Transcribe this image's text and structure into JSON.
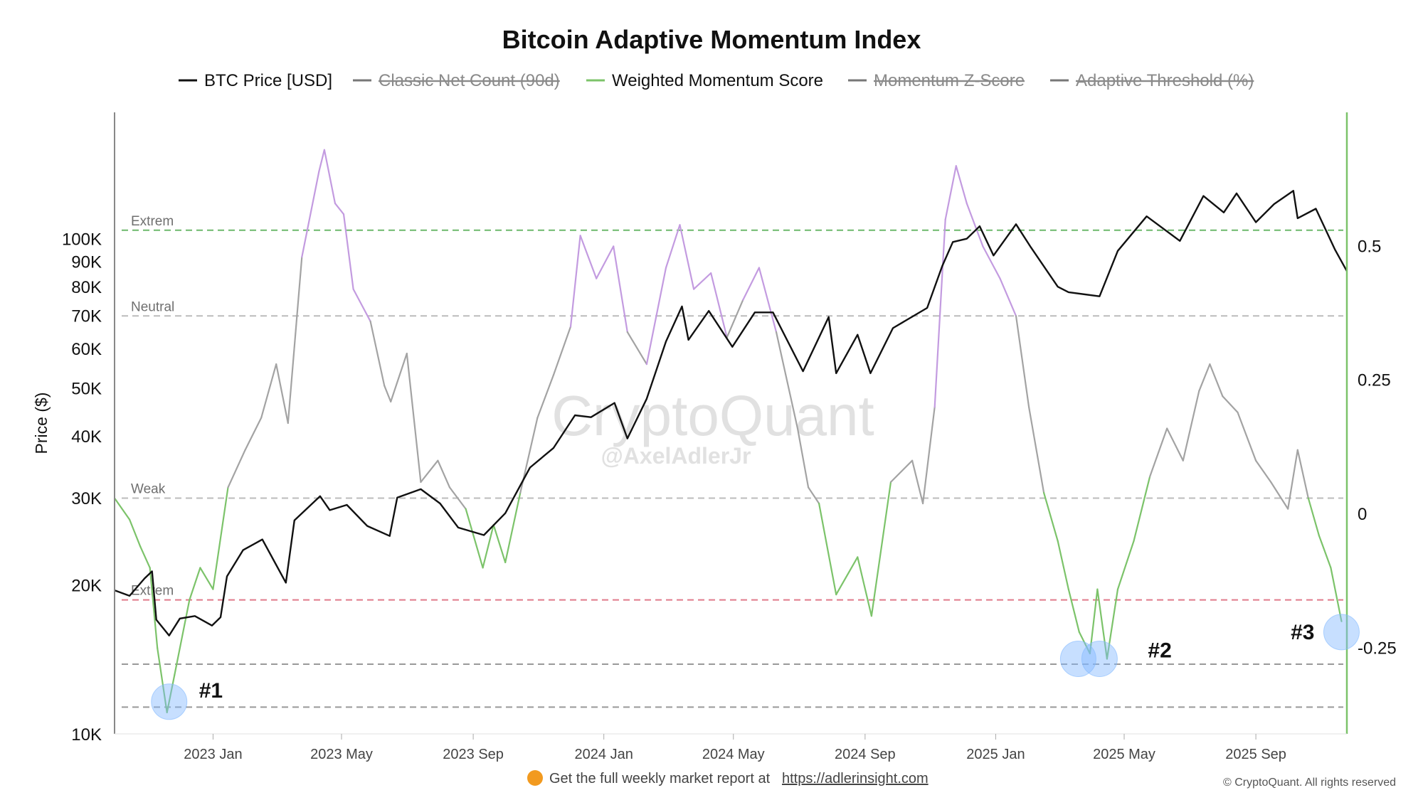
{
  "chart_data": {
    "type": "line",
    "title": "Bitcoin Adaptive Momentum Index",
    "ylabel": "Price ($)",
    "y_scale": "log",
    "ylim": [
      10000,
      180000
    ],
    "y2lim": [
      -0.41,
      0.75
    ],
    "x_range": [
      "2022-10-01",
      "2025-11-25"
    ],
    "x_ticks": [
      {
        "date": "2023-01-01",
        "label": "2023 Jan"
      },
      {
        "date": "2023-05-01",
        "label": "2023 May"
      },
      {
        "date": "2023-09-01",
        "label": "2023 Sep"
      },
      {
        "date": "2024-01-01",
        "label": "2024 Jan"
      },
      {
        "date": "2024-05-01",
        "label": "2024 May"
      },
      {
        "date": "2024-09-01",
        "label": "2024 Sep"
      },
      {
        "date": "2025-01-01",
        "label": "2025 Jan"
      },
      {
        "date": "2025-05-01",
        "label": "2025 May"
      },
      {
        "date": "2025-09-01",
        "label": "2025 Sep"
      }
    ],
    "y_ticks_left": [
      {
        "value": 10000,
        "label": "10K"
      },
      {
        "value": 20000,
        "label": "20K"
      },
      {
        "value": 30000,
        "label": "30K"
      },
      {
        "value": 40000,
        "label": "40K"
      },
      {
        "value": 50000,
        "label": "50K"
      },
      {
        "value": 60000,
        "label": "60K"
      },
      {
        "value": 70000,
        "label": "70K"
      },
      {
        "value": 80000,
        "label": "80K"
      },
      {
        "value": 90000,
        "label": "90K"
      },
      {
        "value": 100000,
        "label": "100K"
      }
    ],
    "y_ticks_right": [
      {
        "value": -0.25,
        "label": "-0.25"
      },
      {
        "value": 0,
        "label": "0"
      },
      {
        "value": 0.25,
        "label": "0.25"
      },
      {
        "value": 0.5,
        "label": "0.5"
      }
    ],
    "legend": [
      {
        "label": "BTC Price [USD]",
        "color": "#111111",
        "hidden": false
      },
      {
        "label": "Classic Net Count (90d)",
        "color": "#777777",
        "hidden": true
      },
      {
        "label": "Weighted Momentum Score",
        "color": "#7cc36a",
        "hidden": false
      },
      {
        "label": "Momentum Z-Score",
        "color": "#777777",
        "hidden": true
      },
      {
        "label": "Adaptive Threshold (%)",
        "color": "#777777",
        "hidden": true
      }
    ],
    "reference_lines": [
      {
        "label": "Extrem",
        "value": 0.53,
        "color": "#6db86b"
      },
      {
        "label": "Neutral",
        "value": 0.37,
        "color": "#bbbbbb"
      },
      {
        "label": "Weak",
        "value": 0.03,
        "color": "#bbbbbb"
      },
      {
        "label": "Extrem",
        "value": -0.16,
        "color": "#e07a8a"
      },
      {
        "label": "",
        "value": -0.28,
        "color": "#999999"
      },
      {
        "label": "",
        "value": -0.36,
        "color": "#999999"
      }
    ],
    "annotations": [
      {
        "label": "#1",
        "date": "2022-11-21",
        "value": -0.35
      },
      {
        "label": "#2",
        "date": "2025-04-08",
        "value": -0.27
      },
      {
        "label": "#3",
        "date": "2025-11-20",
        "value": -0.22
      }
    ],
    "series": [
      {
        "name": "BTC Price [USD]",
        "axis": "left",
        "color": "#111111",
        "points": [
          [
            "2022-10-01",
            19500
          ],
          [
            "2022-10-15",
            19000
          ],
          [
            "2022-10-29",
            20600
          ],
          [
            "2022-11-05",
            21300
          ],
          [
            "2022-11-09",
            17000
          ],
          [
            "2022-11-21",
            15800
          ],
          [
            "2022-12-01",
            17100
          ],
          [
            "2022-12-15",
            17300
          ],
          [
            "2022-12-31",
            16550
          ],
          [
            "2023-01-08",
            17200
          ],
          [
            "2023-01-14",
            20800
          ],
          [
            "2023-01-29",
            23500
          ],
          [
            "2023-02-16",
            24700
          ],
          [
            "2023-03-10",
            20200
          ],
          [
            "2023-03-18",
            27000
          ],
          [
            "2023-04-11",
            30200
          ],
          [
            "2023-04-20",
            28300
          ],
          [
            "2023-05-06",
            29000
          ],
          [
            "2023-05-25",
            26300
          ],
          [
            "2023-06-15",
            25100
          ],
          [
            "2023-06-22",
            30000
          ],
          [
            "2023-07-14",
            31200
          ],
          [
            "2023-08-01",
            29200
          ],
          [
            "2023-08-18",
            26100
          ],
          [
            "2023-09-11",
            25200
          ],
          [
            "2023-10-01",
            27900
          ],
          [
            "2023-10-24",
            34500
          ],
          [
            "2023-11-15",
            37800
          ],
          [
            "2023-12-05",
            44000
          ],
          [
            "2023-12-20",
            43600
          ],
          [
            "2024-01-11",
            46600
          ],
          [
            "2024-01-23",
            39500
          ],
          [
            "2024-02-10",
            47500
          ],
          [
            "2024-02-28",
            62000
          ],
          [
            "2024-03-14",
            73000
          ],
          [
            "2024-03-20",
            62500
          ],
          [
            "2024-04-08",
            71500
          ],
          [
            "2024-04-30",
            60500
          ],
          [
            "2024-05-21",
            71000
          ],
          [
            "2024-06-07",
            71000
          ],
          [
            "2024-07-05",
            54000
          ],
          [
            "2024-07-29",
            69500
          ],
          [
            "2024-08-05",
            53500
          ],
          [
            "2024-08-25",
            64000
          ],
          [
            "2024-09-06",
            53500
          ],
          [
            "2024-09-27",
            66000
          ],
          [
            "2024-10-29",
            72500
          ],
          [
            "2024-11-12",
            88000
          ],
          [
            "2024-11-22",
            98500
          ],
          [
            "2024-12-05",
            100000
          ],
          [
            "2024-12-17",
            106000
          ],
          [
            "2024-12-30",
            92500
          ],
          [
            "2025-01-20",
            107000
          ],
          [
            "2025-02-03",
            96000
          ],
          [
            "2025-02-28",
            80000
          ],
          [
            "2025-03-10",
            78000
          ],
          [
            "2025-04-08",
            76500
          ],
          [
            "2025-04-25",
            94500
          ],
          [
            "2025-05-22",
            111000
          ],
          [
            "2025-06-22",
            99000
          ],
          [
            "2025-07-14",
            122000
          ],
          [
            "2025-08-02",
            113000
          ],
          [
            "2025-08-14",
            123500
          ],
          [
            "2025-09-01",
            108000
          ],
          [
            "2025-09-18",
            117500
          ],
          [
            "2025-10-06",
            125000
          ],
          [
            "2025-10-10",
            110000
          ],
          [
            "2025-10-27",
            115000
          ],
          [
            "2025-11-14",
            95000
          ],
          [
            "2025-11-25",
            86000
          ]
        ]
      },
      {
        "name": "Weighted Momentum Score",
        "axis": "right",
        "color": "#7cc36a",
        "points": [
          [
            "2022-10-01",
            0.03
          ],
          [
            "2022-10-15",
            -0.01
          ],
          [
            "2022-10-25",
            -0.06
          ],
          [
            "2022-11-03",
            -0.1
          ],
          [
            "2022-11-10",
            -0.25
          ],
          [
            "2022-11-19",
            -0.37
          ],
          [
            "2022-11-26",
            -0.3
          ],
          [
            "2022-12-10",
            -0.16
          ],
          [
            "2022-12-20",
            -0.1
          ],
          [
            "2023-01-01",
            -0.14
          ],
          [
            "2023-01-15",
            0.05
          ],
          [
            "2023-01-31",
            0.12
          ],
          [
            "2023-02-15",
            0.18
          ],
          [
            "2023-03-01",
            0.28
          ],
          [
            "2023-03-12",
            0.17
          ],
          [
            "2023-03-25",
            0.48
          ],
          [
            "2023-04-10",
            0.64
          ],
          [
            "2023-04-15",
            0.68
          ],
          [
            "2023-04-25",
            0.58
          ],
          [
            "2023-05-03",
            0.56
          ],
          [
            "2023-05-12",
            0.42
          ],
          [
            "2023-05-28",
            0.36
          ],
          [
            "2023-06-10",
            0.24
          ],
          [
            "2023-06-16",
            0.21
          ],
          [
            "2023-07-01",
            0.3
          ],
          [
            "2023-07-14",
            0.06
          ],
          [
            "2023-07-30",
            0.1
          ],
          [
            "2023-08-10",
            0.05
          ],
          [
            "2023-08-25",
            0.01
          ],
          [
            "2023-09-10",
            -0.1
          ],
          [
            "2023-09-20",
            -0.02
          ],
          [
            "2023-10-01",
            -0.09
          ],
          [
            "2023-10-15",
            0.04
          ],
          [
            "2023-10-31",
            0.18
          ],
          [
            "2023-11-15",
            0.26
          ],
          [
            "2023-12-01",
            0.35
          ],
          [
            "2023-12-10",
            0.52
          ],
          [
            "2023-12-25",
            0.44
          ],
          [
            "2024-01-10",
            0.5
          ],
          [
            "2024-01-23",
            0.34
          ],
          [
            "2024-02-10",
            0.28
          ],
          [
            "2024-02-28",
            0.46
          ],
          [
            "2024-03-12",
            0.54
          ],
          [
            "2024-03-25",
            0.42
          ],
          [
            "2024-04-10",
            0.45
          ],
          [
            "2024-04-25",
            0.33
          ],
          [
            "2024-05-10",
            0.4
          ],
          [
            "2024-05-25",
            0.46
          ],
          [
            "2024-06-10",
            0.34
          ],
          [
            "2024-06-30",
            0.16
          ],
          [
            "2024-07-10",
            0.05
          ],
          [
            "2024-07-20",
            0.02
          ],
          [
            "2024-08-05",
            -0.15
          ],
          [
            "2024-08-25",
            -0.08
          ],
          [
            "2024-09-07",
            -0.19
          ],
          [
            "2024-09-25",
            0.06
          ],
          [
            "2024-10-15",
            0.1
          ],
          [
            "2024-10-25",
            0.02
          ],
          [
            "2024-11-05",
            0.2
          ],
          [
            "2024-11-15",
            0.55
          ],
          [
            "2024-11-25",
            0.65
          ],
          [
            "2024-12-05",
            0.58
          ],
          [
            "2024-12-20",
            0.5
          ],
          [
            "2025-01-05",
            0.44
          ],
          [
            "2025-01-20",
            0.37
          ],
          [
            "2025-02-01",
            0.2
          ],
          [
            "2025-02-15",
            0.04
          ],
          [
            "2025-02-28",
            -0.05
          ],
          [
            "2025-03-10",
            -0.14
          ],
          [
            "2025-03-20",
            -0.22
          ],
          [
            "2025-03-30",
            -0.26
          ],
          [
            "2025-04-06",
            -0.14
          ],
          [
            "2025-04-15",
            -0.27
          ],
          [
            "2025-04-25",
            -0.14
          ],
          [
            "2025-05-10",
            -0.05
          ],
          [
            "2025-05-25",
            0.07
          ],
          [
            "2025-06-10",
            0.16
          ],
          [
            "2025-06-25",
            0.1
          ],
          [
            "2025-07-10",
            0.23
          ],
          [
            "2025-07-20",
            0.28
          ],
          [
            "2025-08-01",
            0.22
          ],
          [
            "2025-08-15",
            0.19
          ],
          [
            "2025-09-01",
            0.1
          ],
          [
            "2025-09-15",
            0.06
          ],
          [
            "2025-10-01",
            0.01
          ],
          [
            "2025-10-10",
            0.12
          ],
          [
            "2025-10-20",
            0.03
          ],
          [
            "2025-10-30",
            -0.04
          ],
          [
            "2025-11-10",
            -0.1
          ],
          [
            "2025-11-20",
            -0.2
          ]
        ]
      }
    ]
  },
  "watermark": {
    "brand": "CryptoQuant",
    "handle": "@AxelAdlerJr"
  },
  "footer": {
    "icon": "orange-circle-icon",
    "text": "Get the full weekly market report at",
    "link": "https://adlerinsight.com",
    "copyright": "© CryptoQuant. All rights reserved"
  }
}
